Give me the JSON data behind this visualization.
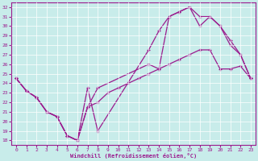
{
  "xlabel": "Windchill (Refroidissement éolien,°C)",
  "bg_color": "#c8ecea",
  "line_color": "#9b1b8e",
  "grid_color": "#ffffff",
  "xlim": [
    -0.5,
    23.5
  ],
  "ylim": [
    17.5,
    32.5
  ],
  "xticks": [
    0,
    1,
    2,
    3,
    4,
    5,
    6,
    7,
    8,
    9,
    10,
    11,
    12,
    13,
    14,
    15,
    16,
    17,
    18,
    19,
    20,
    21,
    22,
    23
  ],
  "yticks": [
    18,
    19,
    20,
    21,
    22,
    23,
    24,
    25,
    26,
    27,
    28,
    29,
    30,
    31,
    32
  ],
  "line1_x": [
    0,
    1,
    2,
    3,
    4,
    5,
    6,
    7,
    8,
    13,
    14,
    15,
    16,
    17,
    18,
    19,
    20,
    21,
    22,
    23
  ],
  "line1_y": [
    24.5,
    23.2,
    22.5,
    21.0,
    20.5,
    18.5,
    18.0,
    23.5,
    19.0,
    27.5,
    29.5,
    31.0,
    31.5,
    32.0,
    31.0,
    31.0,
    30.0,
    28.0,
    27.0,
    24.5
  ],
  "line2_x": [
    0,
    1,
    2,
    3,
    4,
    5,
    6,
    7,
    8,
    13,
    14,
    15,
    16,
    17,
    18,
    19,
    20,
    21,
    22,
    23
  ],
  "line2_y": [
    24.5,
    23.2,
    22.5,
    21.0,
    20.5,
    18.5,
    18.0,
    21.5,
    23.5,
    26.0,
    25.5,
    31.0,
    31.5,
    32.0,
    30.0,
    31.0,
    30.0,
    28.5,
    27.0,
    24.5
  ],
  "line3_x": [
    0,
    1,
    2,
    3,
    4,
    5,
    6,
    7,
    8,
    9,
    10,
    11,
    12,
    13,
    14,
    15,
    16,
    17,
    18,
    19,
    20,
    21,
    22,
    23
  ],
  "line3_y": [
    24.5,
    23.2,
    22.5,
    21.0,
    20.5,
    18.5,
    18.0,
    21.5,
    22.0,
    23.0,
    23.5,
    24.0,
    24.5,
    25.0,
    25.5,
    26.0,
    26.5,
    27.0,
    27.5,
    27.5,
    25.5,
    25.5,
    25.8,
    24.5
  ]
}
